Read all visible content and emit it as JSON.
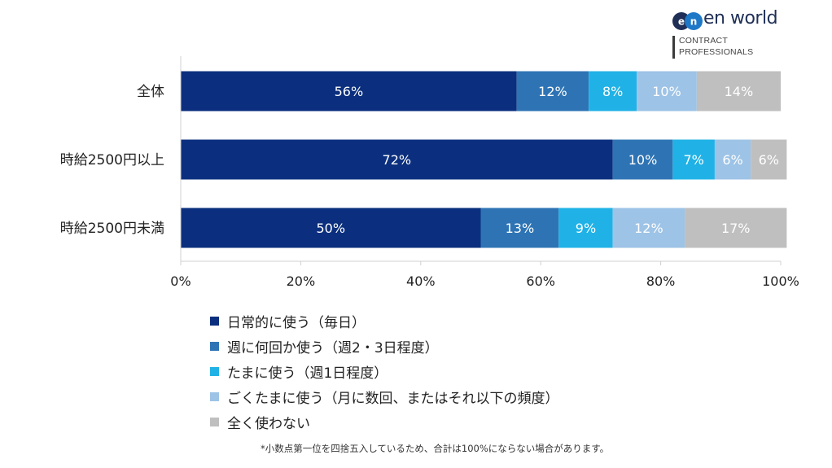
{
  "logo": {
    "brand": "en world",
    "tagline_line1": "CONTRACT",
    "tagline_line2": "PROFESSIONALS"
  },
  "chart_data": {
    "type": "bar",
    "orientation": "horizontal",
    "stacked": true,
    "categories": [
      "全体",
      "時給2500円以上",
      "時給2500円未満"
    ],
    "series": [
      {
        "name": "日常的に使う（毎日）",
        "values": [
          56,
          72,
          50
        ],
        "color": "#0b2f7e"
      },
      {
        "name": "週に何回か使う（週2・3日程度）",
        "values": [
          12,
          10,
          13
        ],
        "color": "#2e74b5"
      },
      {
        "name": "たまに使う（週1日程度）",
        "values": [
          8,
          7,
          9
        ],
        "color": "#20b2e6"
      },
      {
        "name": "ごくたまに使う（月に数回、またはそれ以下の頻度）",
        "values": [
          10,
          6,
          12
        ],
        "color": "#9dc3e6"
      },
      {
        "name": "全く使わない",
        "values": [
          14,
          6,
          17
        ],
        "color": "#bfbfbf"
      }
    ],
    "value_labels": [
      [
        "56%",
        "12%",
        "8%",
        "10%",
        "14%"
      ],
      [
        "72%",
        "10%",
        "7%",
        "6%",
        "6%"
      ],
      [
        "50%",
        "13%",
        "9%",
        "12%",
        "17%"
      ]
    ],
    "xlim": [
      0,
      100
    ],
    "xticks": [
      "0%",
      "20%",
      "40%",
      "60%",
      "80%",
      "100%"
    ],
    "grid": false,
    "legend_position": "bottom"
  },
  "footnote": "*小数点第一位を四捨五入しているため、合計は100%にならない場合があります。"
}
